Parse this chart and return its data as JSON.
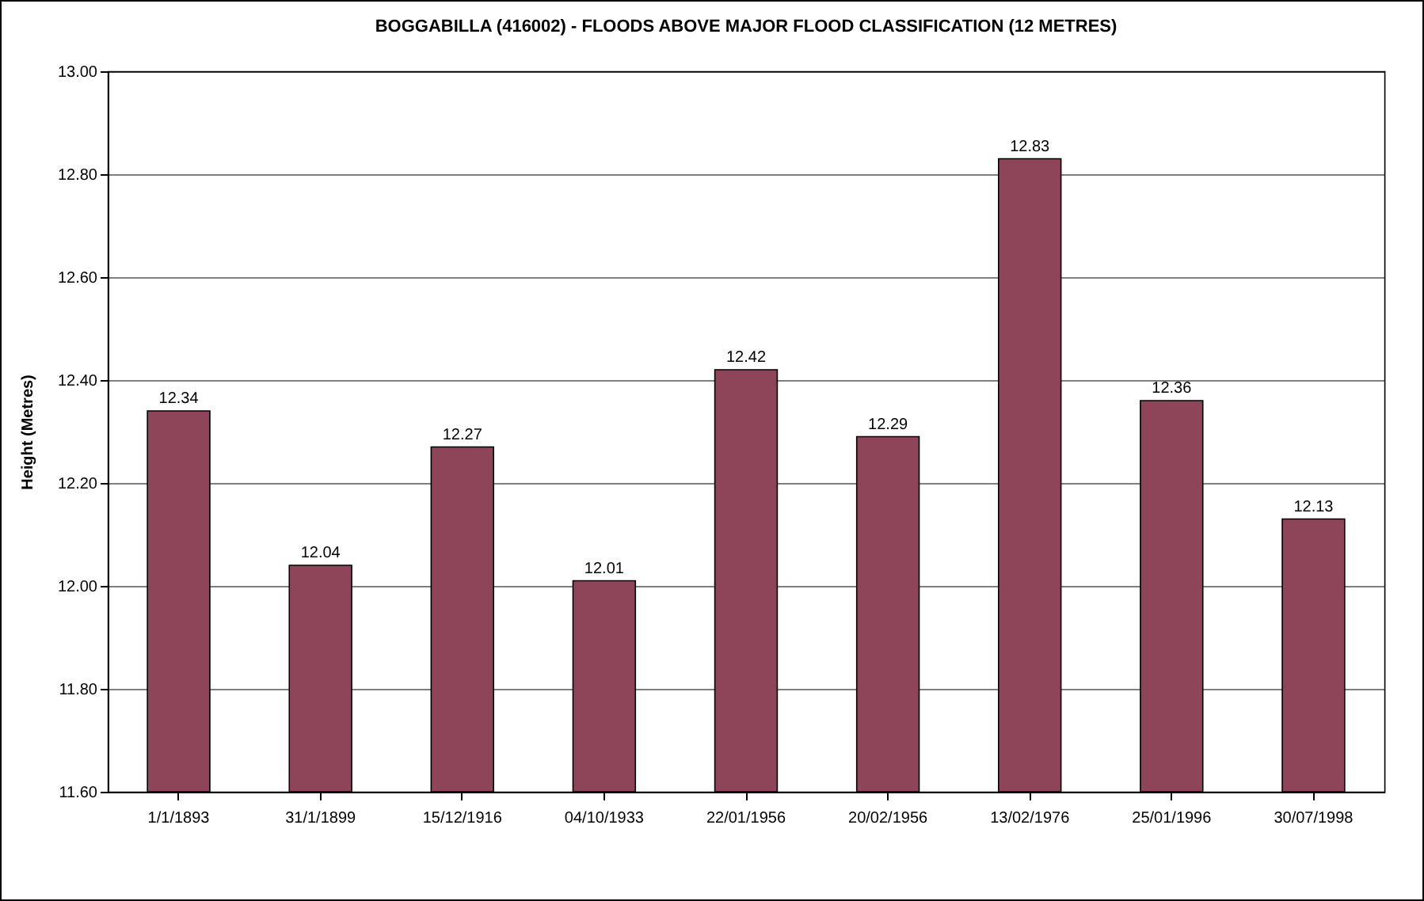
{
  "chart_data": {
    "type": "bar",
    "title": "BOGGABILLA (416002) - FLOODS ABOVE MAJOR FLOOD CLASSIFICATION (12 METRES)",
    "ylabel": "Height (Metres)",
    "categories": [
      "1/1/1893",
      "31/1/1899",
      "15/12/1916",
      "04/10/1933",
      "22/01/1956",
      "20/02/1956",
      "13/02/1976",
      "25/01/1996",
      "30/07/1998"
    ],
    "values": [
      12.34,
      12.04,
      12.27,
      12.01,
      12.42,
      12.29,
      12.83,
      12.36,
      12.13
    ],
    "color": "#8e4459",
    "ylim": [
      11.6,
      13.0
    ],
    "yticks": [
      {
        "value": 11.6,
        "label": "11.60"
      },
      {
        "value": 11.8,
        "label": "11.80"
      },
      {
        "value": 12.0,
        "label": "12.00"
      },
      {
        "value": 12.2,
        "label": "12.20"
      },
      {
        "value": 12.4,
        "label": "12.40"
      },
      {
        "value": 12.6,
        "label": "12.60"
      },
      {
        "value": 12.8,
        "label": "12.80"
      },
      {
        "value": 13.0,
        "label": "13.00"
      }
    ],
    "grid": "y",
    "data_labels": true
  }
}
